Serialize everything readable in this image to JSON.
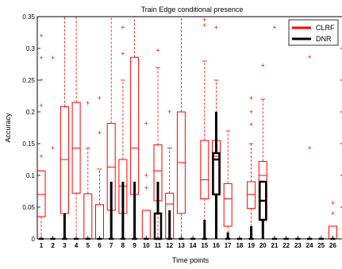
{
  "chart_data": {
    "type": "box",
    "title": "Train Edge conditional presence",
    "xlabel": "Time points",
    "ylabel": "Accuracy",
    "ylim": [
      0,
      0.35
    ],
    "yticks": [
      "0",
      "0.05",
      "0.1",
      "0.15",
      "0.2",
      "0.25",
      "0.3",
      "0.35"
    ],
    "yticks_values": [
      0,
      0.05,
      0.1,
      0.15,
      0.2,
      0.25,
      0.3,
      0.35
    ],
    "categories": [
      "1",
      "2",
      "3",
      "4",
      "5",
      "6",
      "7",
      "8",
      "9",
      "10",
      "11",
      "12",
      "13",
      "14",
      "15",
      "16",
      "17",
      "18",
      "19",
      "20",
      "21",
      "22",
      "23",
      "24",
      "25",
      "26"
    ],
    "legend_position": "top-right",
    "series": [
      {
        "name": "CLRF",
        "color": "#ff0000",
        "boxes": [
          {
            "q1": 0.035,
            "median": 0.07,
            "q3": 0.107,
            "wlo": 0.0,
            "whi": 0.107,
            "outliers": [
              0.13,
              0.21,
              0.25,
              0.285,
              0.32
            ]
          },
          {
            "q1": 0,
            "median": 0,
            "q3": 0,
            "wlo": 0,
            "whi": 0,
            "outliers": [
              0.143,
              0.285
            ]
          },
          {
            "q1": 0.04,
            "median": 0.125,
            "q3": 0.208,
            "wlo": 0.0,
            "whi": 0.35,
            "outliers": []
          },
          {
            "q1": 0.072,
            "median": 0.143,
            "q3": 0.215,
            "wlo": 0.0,
            "whi": 0.35,
            "outliers": []
          },
          {
            "q1": 0,
            "median": 0,
            "q3": 0.071,
            "wlo": 0,
            "whi": 0.143,
            "outliers": [
              0.214
            ]
          },
          {
            "q1": 0,
            "median": 0,
            "q3": 0.054,
            "wlo": 0,
            "whi": 0.11,
            "outliers": [
              0.167,
              0.222
            ]
          },
          {
            "q1": 0.045,
            "median": 0.113,
            "q3": 0.182,
            "wlo": 0.0,
            "whi": 0.35,
            "outliers": []
          },
          {
            "q1": 0.04,
            "median": 0.083,
            "q3": 0.125,
            "wlo": 0.0,
            "whi": 0.25,
            "outliers": [
              0.292,
              0.333
            ]
          },
          {
            "q1": 0.07,
            "median": 0.143,
            "q3": 0.286,
            "wlo": 0.0,
            "whi": 0.35,
            "outliers": []
          },
          {
            "q1": 0,
            "median": 0,
            "q3": 0.045,
            "wlo": 0,
            "whi": 0.045,
            "outliers": [
              0.08,
              0.1,
              0.182
            ]
          },
          {
            "q1": 0.06,
            "median": 0.107,
            "q3": 0.148,
            "wlo": 0.0,
            "whi": 0.27,
            "outliers": [
              0.297
            ]
          },
          {
            "q1": 0,
            "median": 0.055,
            "q3": 0.072,
            "wlo": 0,
            "whi": 0.143,
            "outliers": [
              0.2
            ]
          },
          {
            "q1": 0.04,
            "median": 0.12,
            "q3": 0.2,
            "wlo": 0.0,
            "whi": 0.35,
            "outliers": []
          },
          {
            "q1": 0,
            "median": 0,
            "q3": 0,
            "wlo": 0,
            "whi": 0,
            "outliers": []
          },
          {
            "q1": 0.063,
            "median": 0.093,
            "q3": 0.155,
            "wlo": 0.0,
            "whi": 0.28,
            "outliers": [
              0.336,
              0.345
            ]
          },
          {
            "q1": 0.07,
            "median": 0.13,
            "q3": 0.155,
            "wlo": 0.0,
            "whi": 0.25,
            "outliers": [
              0.333
            ]
          },
          {
            "q1": 0.02,
            "median": 0.063,
            "q3": 0.087,
            "wlo": 0.0,
            "whi": 0.17,
            "outliers": []
          },
          {
            "q1": 0,
            "median": 0,
            "q3": 0,
            "wlo": 0,
            "whi": 0,
            "outliers": []
          },
          {
            "q1": 0.048,
            "median": 0.07,
            "q3": 0.09,
            "wlo": 0.0,
            "whi": 0.15,
            "outliers": [
              0.18,
              0.2,
              0.222
            ]
          },
          {
            "q1": 0.03,
            "median": 0.1,
            "q3": 0.122,
            "wlo": 0.0,
            "whi": 0.22,
            "outliers": [
              0.273
            ]
          },
          {
            "q1": 0,
            "median": 0,
            "q3": 0,
            "wlo": 0,
            "whi": 0,
            "outliers": [
              0.333
            ]
          },
          {
            "q1": 0,
            "median": 0,
            "q3": 0,
            "wlo": 0,
            "whi": 0,
            "outliers": []
          },
          {
            "q1": 0,
            "median": 0,
            "q3": 0,
            "wlo": 0,
            "whi": 0,
            "outliers": []
          },
          {
            "q1": 0,
            "median": 0,
            "q3": 0,
            "wlo": 0,
            "whi": 0,
            "outliers": [
              0.143,
              0.286
            ]
          },
          {
            "q1": 0,
            "median": 0,
            "q3": 0,
            "wlo": 0,
            "whi": 0,
            "outliers": []
          },
          {
            "q1": 0,
            "median": 0,
            "q3": 0.02,
            "wlo": 0,
            "whi": 0.02,
            "outliers": [
              0.04,
              0.056
            ]
          }
        ]
      },
      {
        "name": "DNR",
        "color": "#000000",
        "boxes": [
          {
            "q1": 0,
            "median": 0,
            "q3": 0,
            "wlo": 0,
            "whi": 0,
            "outliers": []
          },
          {
            "q1": 0,
            "median": 0,
            "q3": 0,
            "wlo": 0,
            "whi": 0,
            "outliers": []
          },
          {
            "q1": 0,
            "median": 0,
            "q3": 0,
            "wlo": 0,
            "whi": 0.04,
            "outliers": []
          },
          {
            "q1": 0,
            "median": 0,
            "q3": 0,
            "wlo": 0,
            "whi": 0,
            "outliers": []
          },
          {
            "q1": 0,
            "median": 0,
            "q3": 0,
            "wlo": 0,
            "whi": 0,
            "outliers": []
          },
          {
            "q1": 0,
            "median": 0,
            "q3": 0,
            "wlo": 0,
            "whi": 0,
            "outliers": []
          },
          {
            "q1": 0,
            "median": 0,
            "q3": 0,
            "wlo": 0,
            "whi": 0.09,
            "outliers": []
          },
          {
            "q1": 0,
            "median": 0,
            "q3": 0,
            "wlo": 0,
            "whi": 0.09,
            "outliers": []
          },
          {
            "q1": 0,
            "median": 0,
            "q3": 0,
            "wlo": 0,
            "whi": 0.09,
            "outliers": []
          },
          {
            "q1": 0,
            "median": 0,
            "q3": 0,
            "wlo": 0,
            "whi": 0,
            "outliers": []
          },
          {
            "q1": 0,
            "median": 0,
            "q3": 0.04,
            "wlo": 0,
            "whi": 0.09,
            "outliers": []
          },
          {
            "q1": 0,
            "median": 0,
            "q3": 0,
            "wlo": 0,
            "whi": 0.045,
            "outliers": []
          },
          {
            "q1": 0,
            "median": 0,
            "q3": 0,
            "wlo": 0,
            "whi": 0,
            "outliers": []
          },
          {
            "q1": 0,
            "median": 0,
            "q3": 0,
            "wlo": 0,
            "whi": 0,
            "outliers": []
          },
          {
            "q1": 0,
            "median": 0,
            "q3": 0,
            "wlo": 0,
            "whi": 0.03,
            "outliers": []
          },
          {
            "q1": 0.07,
            "median": 0.125,
            "q3": 0.135,
            "wlo": 0.0,
            "whi": 0.2,
            "outliers": []
          },
          {
            "q1": 0,
            "median": 0,
            "q3": 0,
            "wlo": 0,
            "whi": 0.01,
            "outliers": []
          },
          {
            "q1": 0,
            "median": 0,
            "q3": 0,
            "wlo": 0,
            "whi": 0,
            "outliers": []
          },
          {
            "q1": 0,
            "median": 0,
            "q3": 0,
            "wlo": 0,
            "whi": 0.02,
            "outliers": []
          },
          {
            "q1": 0.03,
            "median": 0.06,
            "q3": 0.09,
            "wlo": 0.0,
            "whi": 0.09,
            "outliers": []
          },
          {
            "q1": 0,
            "median": 0,
            "q3": 0,
            "wlo": 0,
            "whi": 0,
            "outliers": []
          },
          {
            "q1": 0,
            "median": 0,
            "q3": 0,
            "wlo": 0,
            "whi": 0,
            "outliers": []
          },
          {
            "q1": 0,
            "median": 0,
            "q3": 0,
            "wlo": 0,
            "whi": 0,
            "outliers": []
          },
          {
            "q1": 0,
            "median": 0,
            "q3": 0,
            "wlo": 0,
            "whi": 0,
            "outliers": []
          },
          {
            "q1": 0,
            "median": 0,
            "q3": 0,
            "wlo": 0,
            "whi": 0,
            "outliers": []
          },
          {
            "q1": 0,
            "median": 0,
            "q3": 0,
            "wlo": 0,
            "whi": 0,
            "outliers": []
          }
        ]
      }
    ]
  }
}
